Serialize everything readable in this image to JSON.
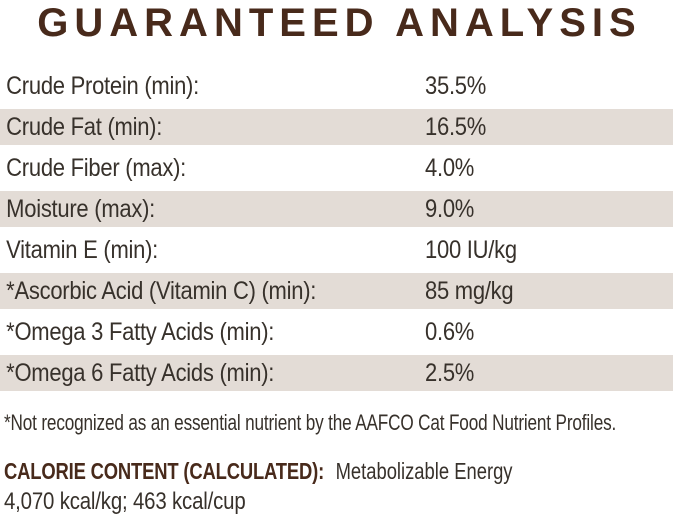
{
  "title": "GUARANTEED ANALYSIS",
  "analysis_table": {
    "rows": [
      {
        "label": "Crude Protein (min):",
        "value": "35.5%"
      },
      {
        "label": "Crude Fat (min):",
        "value": "16.5%"
      },
      {
        "label": "Crude Fiber (max):",
        "value": "4.0%"
      },
      {
        "label": "Moisture (max):",
        "value": "9.0%"
      },
      {
        "label": "Vitamin E (min):",
        "value": "100 IU/kg"
      },
      {
        "label": "*Ascorbic Acid (Vitamin C) (min):",
        "value": "85 mg/kg"
      },
      {
        "label": "*Omega 3 Fatty Acids (min):",
        "value": "0.6%"
      },
      {
        "label": "*Omega 6 Fatty Acids (min):",
        "value": "2.5%"
      }
    ]
  },
  "footnote": "*Not recognized as an essential nutrient by the AAFCO Cat Food Nutrient Profiles.",
  "calorie_content": {
    "heading": "CALORIE CONTENT (CALCULATED):",
    "description": "Metabolizable Energy",
    "values": "4,070 kcal/kg; 463 kcal/cup"
  },
  "colors": {
    "title_brown": "#482a1b",
    "body_text": "#37312b",
    "row_shade": "#e3dcd6",
    "background": "#ffffff"
  }
}
